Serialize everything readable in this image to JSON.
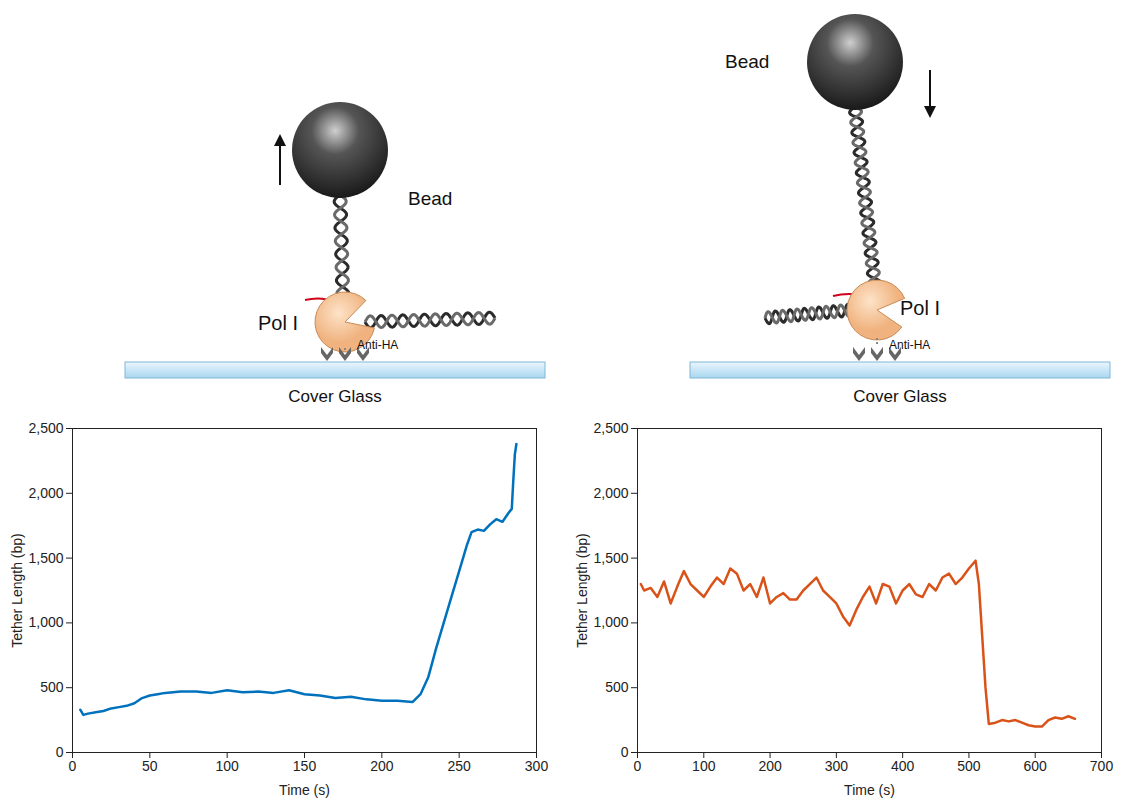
{
  "chart_data": [
    {
      "type": "line",
      "x_label": "Time (s)",
      "y_label": "Tether Length (bp)",
      "color": "#0072BD",
      "xlim": [
        0,
        300
      ],
      "xticks": [
        0,
        50,
        100,
        150,
        200,
        250,
        300
      ],
      "ylim": [
        0,
        2500
      ],
      "yticks": [
        0,
        500,
        1000,
        1500,
        2000,
        2500
      ],
      "x": [
        5,
        7,
        10,
        15,
        20,
        25,
        30,
        35,
        40,
        45,
        50,
        55,
        60,
        70,
        80,
        90,
        100,
        110,
        120,
        130,
        140,
        150,
        160,
        170,
        180,
        190,
        200,
        210,
        220,
        225,
        230,
        235,
        240,
        245,
        250,
        255,
        258,
        262,
        266,
        270,
        274,
        278,
        282,
        284,
        285,
        286,
        287
      ],
      "values": [
        330,
        290,
        300,
        310,
        320,
        340,
        350,
        360,
        380,
        420,
        440,
        450,
        460,
        470,
        470,
        460,
        480,
        465,
        470,
        460,
        480,
        450,
        440,
        420,
        430,
        410,
        400,
        400,
        390,
        450,
        580,
        800,
        1000,
        1200,
        1400,
        1600,
        1700,
        1720,
        1710,
        1760,
        1800,
        1780,
        1850,
        1880,
        2100,
        2300,
        2380
      ]
    },
    {
      "type": "line",
      "x_label": "Time (s)",
      "y_label": "Tether Length (bp)",
      "color": "#D95319",
      "xlim": [
        0,
        700
      ],
      "xticks": [
        0,
        100,
        200,
        300,
        400,
        500,
        600,
        700
      ],
      "ylim": [
        0,
        2500
      ],
      "yticks": [
        0,
        500,
        1000,
        1500,
        2000,
        2500
      ],
      "x": [
        5,
        10,
        20,
        30,
        40,
        50,
        60,
        70,
        80,
        90,
        100,
        110,
        120,
        130,
        140,
        150,
        160,
        170,
        180,
        190,
        200,
        210,
        220,
        230,
        240,
        250,
        260,
        270,
        280,
        290,
        300,
        310,
        320,
        330,
        340,
        350,
        360,
        370,
        380,
        390,
        400,
        410,
        420,
        430,
        440,
        450,
        460,
        470,
        480,
        490,
        500,
        510,
        515,
        520,
        525,
        530,
        540,
        550,
        560,
        570,
        580,
        590,
        600,
        610,
        620,
        630,
        640,
        650,
        660
      ],
      "values": [
        1300,
        1250,
        1270,
        1200,
        1320,
        1150,
        1280,
        1400,
        1300,
        1250,
        1200,
        1280,
        1350,
        1300,
        1420,
        1380,
        1250,
        1300,
        1200,
        1350,
        1150,
        1200,
        1230,
        1180,
        1180,
        1250,
        1300,
        1350,
        1250,
        1200,
        1150,
        1050,
        980,
        1100,
        1200,
        1280,
        1150,
        1300,
        1280,
        1150,
        1250,
        1300,
        1220,
        1200,
        1300,
        1250,
        1350,
        1380,
        1300,
        1350,
        1420,
        1480,
        1300,
        900,
        500,
        220,
        230,
        250,
        240,
        250,
        230,
        210,
        200,
        200,
        250,
        270,
        260,
        280,
        260
      ]
    }
  ],
  "diagrams": [
    {
      "labels": {
        "bead": "Bead",
        "enzyme": "Pol I",
        "antibody": "Anti-HA",
        "surface": "Cover Glass"
      }
    },
    {
      "labels": {
        "bead": "Bead",
        "enzyme": "Pol I",
        "antibody": "Anti-HA",
        "surface": "Cover Glass"
      }
    }
  ]
}
